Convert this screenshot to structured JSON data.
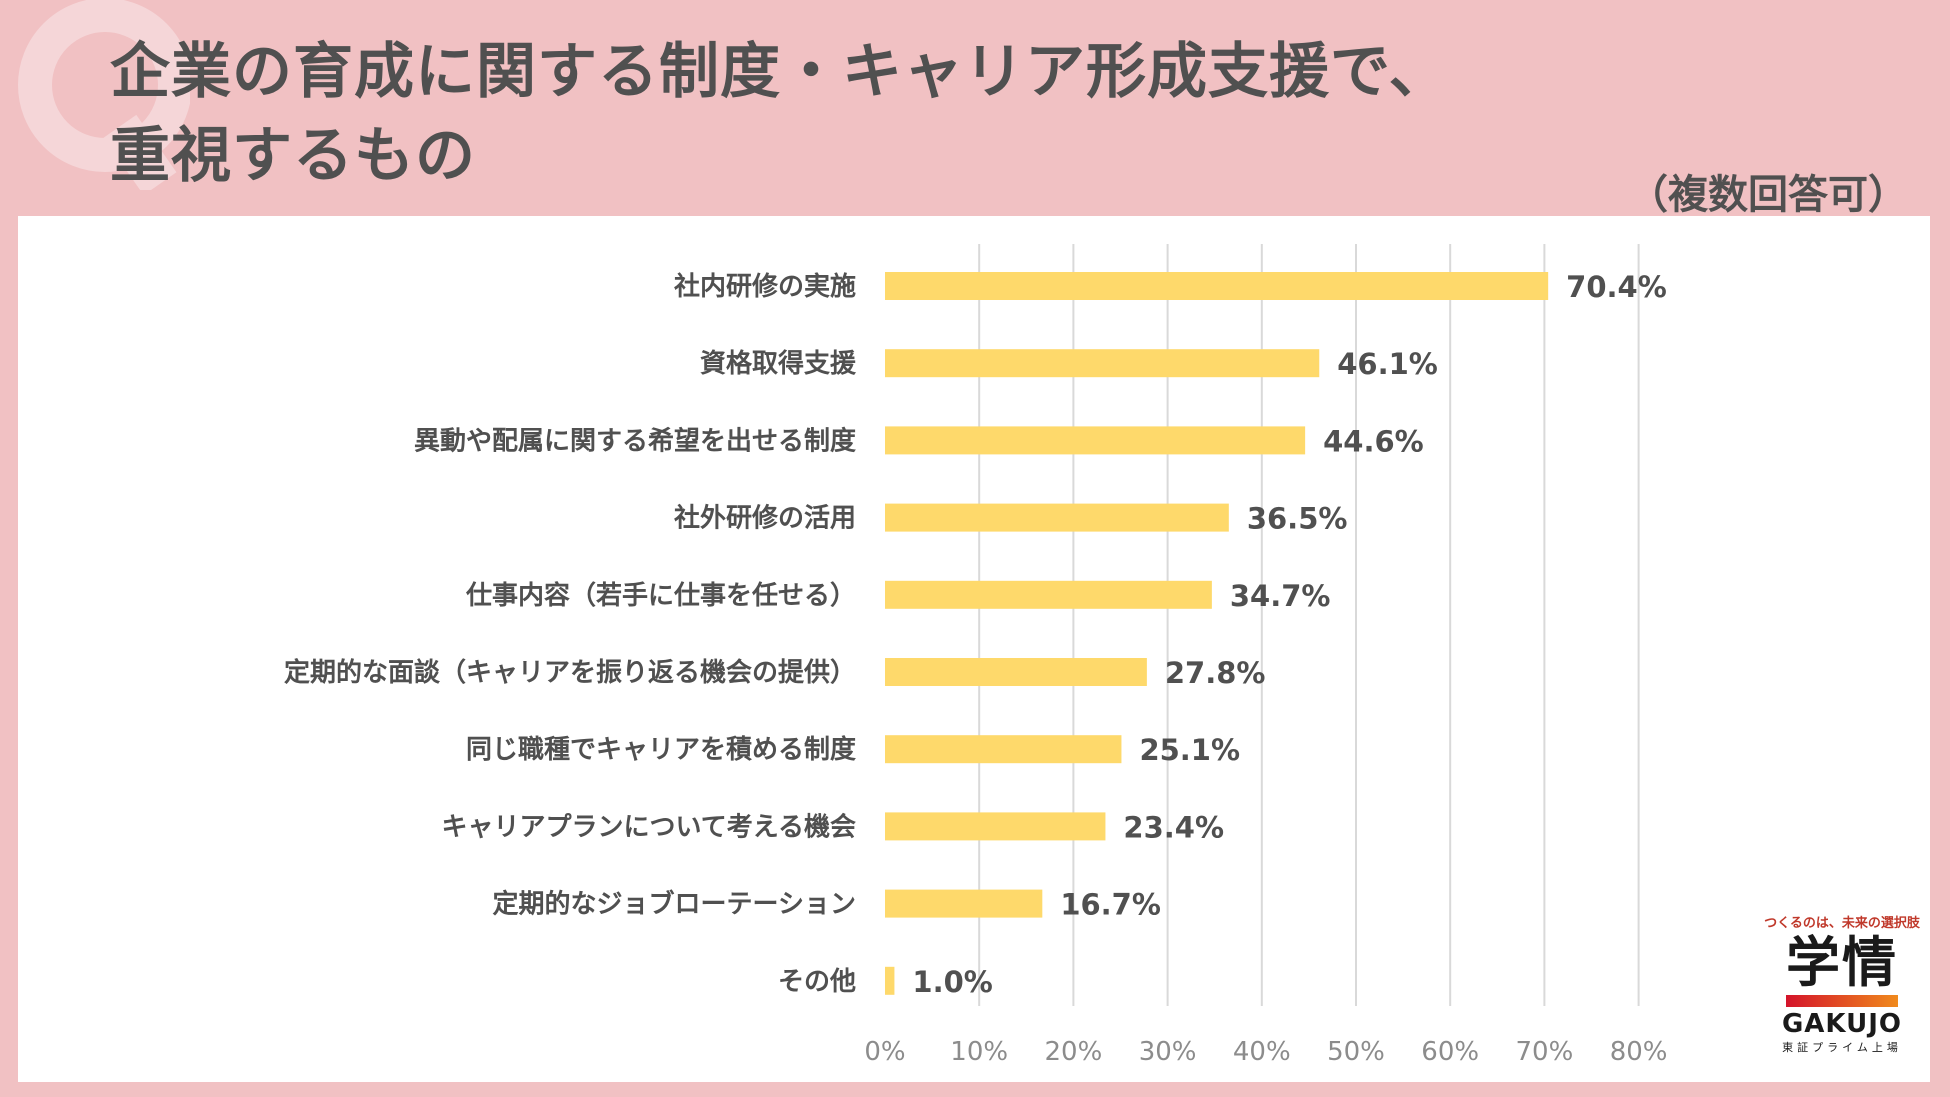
{
  "header": {
    "title_line1": "企業の育成に関する制度・キャリア形成支援で、",
    "title_line2": "重視するもの",
    "note": "（複数回答可）"
  },
  "logo": {
    "tagline": "つくるのは、未来の選択肢",
    "mark": "学情",
    "name": "GAKUJO",
    "sub": "東証プライム上場"
  },
  "colors": {
    "background": "#f1c1c3",
    "panel": "#ffffff",
    "bar": "#fed96b",
    "grid": "#d9d9d9",
    "text": "#505050",
    "tick": "#8c8c8c"
  },
  "chart_data": {
    "type": "bar",
    "orientation": "horizontal",
    "categories": [
      "社内研修の実施",
      "資格取得支援",
      "異動や配属に関する希望を出せる制度",
      "社外研修の活用",
      "仕事内容（若手に仕事を任せる）",
      "定期的な面談（キャリアを振り返る機会の提供）",
      "同じ職種でキャリアを積める制度",
      "キャリアプランについて考える機会",
      "定期的なジョブローテーション",
      "その他"
    ],
    "values": [
      70.4,
      46.1,
      44.6,
      36.5,
      34.7,
      27.8,
      25.1,
      23.4,
      16.7,
      1.0
    ],
    "value_labels": [
      "70.4%",
      "46.1%",
      "44.6%",
      "36.5%",
      "34.7%",
      "27.8%",
      "25.1%",
      "23.4%",
      "16.7%",
      "1.0%"
    ],
    "xlim": [
      0,
      80
    ],
    "xticks": [
      0,
      10,
      20,
      30,
      40,
      50,
      60,
      70,
      80
    ],
    "xtick_labels": [
      "0%",
      "10%",
      "20%",
      "30%",
      "40%",
      "50%",
      "60%",
      "70%",
      "80%"
    ],
    "grid": true,
    "legend": "none"
  }
}
